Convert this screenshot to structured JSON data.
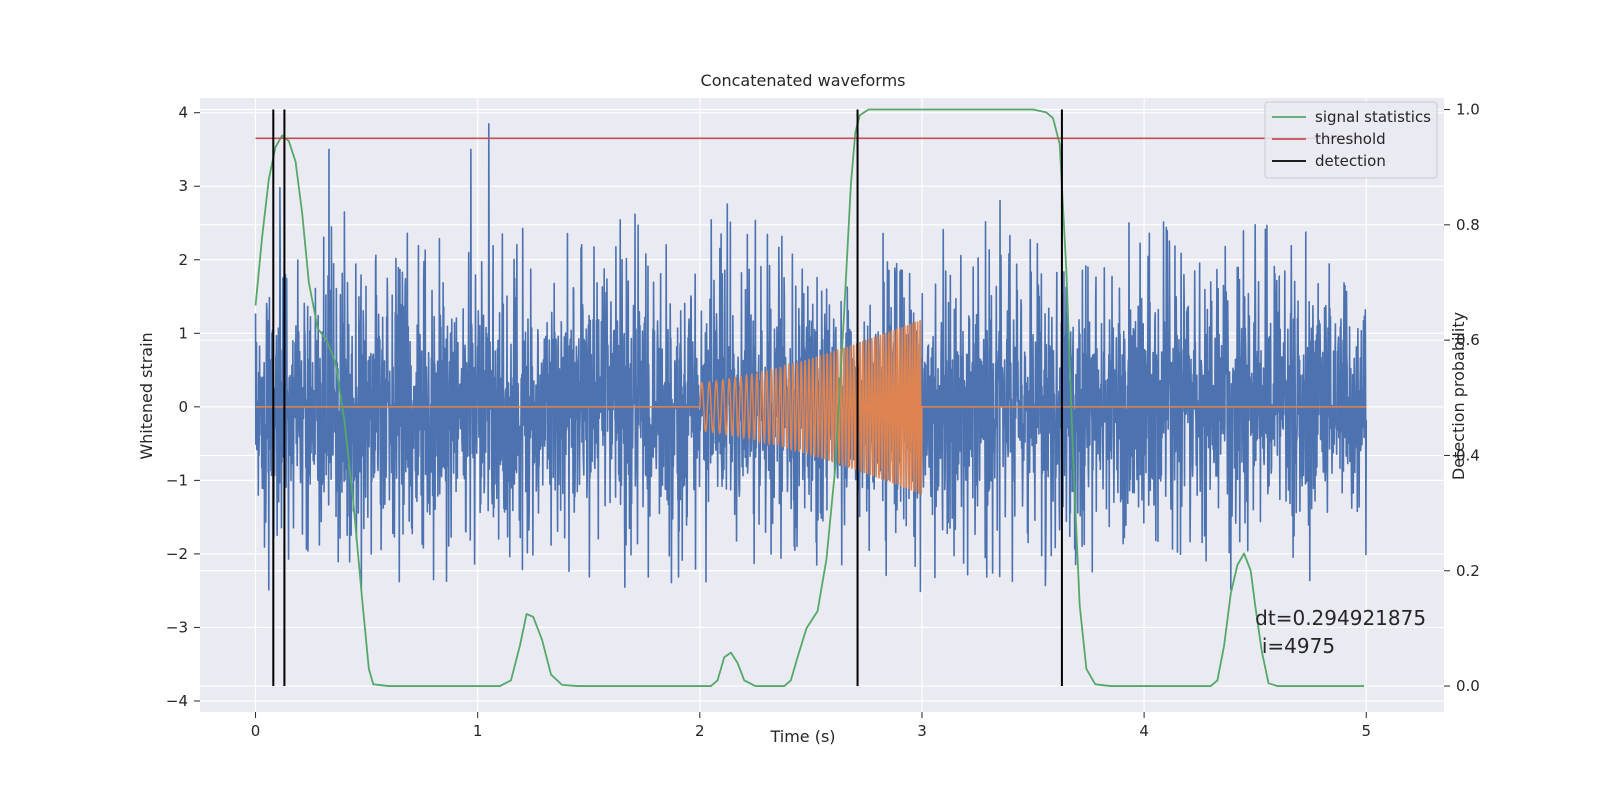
{
  "chart_data": {
    "type": "line",
    "title": "Concatenated waveforms",
    "xlabel": "Time (s)",
    "ylabel_left": "Whitened strain",
    "ylabel_right": "Detection probability",
    "xlim": [
      -0.25,
      5.35
    ],
    "ylim_left": [
      -4.15,
      4.2
    ],
    "ylim_right": [
      -0.045,
      1.02
    ],
    "x_ticks": [
      0,
      1,
      2,
      3,
      4,
      5
    ],
    "x_tick_labels": [
      "0",
      "1",
      "2",
      "3",
      "4",
      "5"
    ],
    "y_left_ticks": [
      -4,
      -3,
      -2,
      -1,
      0,
      1,
      2,
      3,
      4
    ],
    "y_left_tick_labels": [
      "−4",
      "−3",
      "−2",
      "−1",
      "0",
      "1",
      "2",
      "3",
      "4"
    ],
    "y_right_ticks": [
      0.0,
      0.2,
      0.4,
      0.6,
      0.8,
      1.0
    ],
    "y_right_tick_labels": [
      "0.0",
      "0.2",
      "0.4",
      "0.6",
      "0.8",
      "1.0"
    ],
    "grid": true,
    "legend_position": "top-right",
    "series": [
      {
        "name": "",
        "axis": "left",
        "kind": "noise",
        "color": "#4c72b0",
        "x_range": [
          0,
          5
        ],
        "typical_amplitude": [
          -1.1,
          1.25
        ],
        "peak_max": 3.85,
        "peak_min": -3.1,
        "prominent_peaks": [
          {
            "x": 0.33,
            "y": 3.5
          },
          {
            "x": 0.97,
            "y": 3.5
          },
          {
            "x": 1.05,
            "y": 3.85
          },
          {
            "x": 0.11,
            "y": 2.98
          },
          {
            "x": 0.4,
            "y": 2.65
          }
        ]
      },
      {
        "name": "",
        "axis": "left",
        "kind": "chirp",
        "color": "#dd8452",
        "x_range": [
          0,
          5
        ],
        "active_range": [
          2.0,
          3.0
        ],
        "amplitude_start": 0.33,
        "amplitude_end": 1.2,
        "flat_value": 0
      },
      {
        "name": "signal statistics",
        "axis": "right",
        "color": "#55a868",
        "points": [
          [
            0.0,
            0.66
          ],
          [
            0.03,
            0.78
          ],
          [
            0.06,
            0.88
          ],
          [
            0.09,
            0.935
          ],
          [
            0.12,
            0.955
          ],
          [
            0.15,
            0.945
          ],
          [
            0.18,
            0.91
          ],
          [
            0.21,
            0.82
          ],
          [
            0.24,
            0.7
          ],
          [
            0.28,
            0.62
          ],
          [
            0.32,
            0.6
          ],
          [
            0.36,
            0.56
          ],
          [
            0.4,
            0.46
          ],
          [
            0.44,
            0.32
          ],
          [
            0.48,
            0.15
          ],
          [
            0.51,
            0.03
          ],
          [
            0.53,
            0.003
          ],
          [
            0.6,
            0.0
          ],
          [
            1.1,
            0.0
          ],
          [
            1.15,
            0.01
          ],
          [
            1.19,
            0.07
          ],
          [
            1.22,
            0.125
          ],
          [
            1.25,
            0.12
          ],
          [
            1.29,
            0.08
          ],
          [
            1.33,
            0.02
          ],
          [
            1.38,
            0.002
          ],
          [
            1.45,
            0.0
          ],
          [
            2.05,
            0.0
          ],
          [
            2.08,
            0.01
          ],
          [
            2.11,
            0.05
          ],
          [
            2.14,
            0.058
          ],
          [
            2.17,
            0.04
          ],
          [
            2.2,
            0.01
          ],
          [
            2.25,
            0.0
          ],
          [
            2.38,
            0.0
          ],
          [
            2.41,
            0.01
          ],
          [
            2.44,
            0.05
          ],
          [
            2.48,
            0.1
          ],
          [
            2.53,
            0.13
          ],
          [
            2.57,
            0.22
          ],
          [
            2.61,
            0.38
          ],
          [
            2.65,
            0.65
          ],
          [
            2.68,
            0.87
          ],
          [
            2.7,
            0.96
          ],
          [
            2.72,
            0.99
          ],
          [
            2.76,
            1.0
          ],
          [
            3.5,
            1.0
          ],
          [
            3.56,
            0.995
          ],
          [
            3.59,
            0.985
          ],
          [
            3.62,
            0.94
          ],
          [
            3.65,
            0.72
          ],
          [
            3.68,
            0.4
          ],
          [
            3.71,
            0.14
          ],
          [
            3.74,
            0.03
          ],
          [
            3.78,
            0.003
          ],
          [
            3.85,
            0.0
          ],
          [
            4.3,
            0.0
          ],
          [
            4.33,
            0.01
          ],
          [
            4.36,
            0.07
          ],
          [
            4.39,
            0.16
          ],
          [
            4.42,
            0.21
          ],
          [
            4.45,
            0.23
          ],
          [
            4.48,
            0.2
          ],
          [
            4.5,
            0.14
          ],
          [
            4.53,
            0.06
          ],
          [
            4.56,
            0.005
          ],
          [
            4.6,
            0.0
          ],
          [
            4.99,
            0.0
          ]
        ]
      },
      {
        "name": "threshold",
        "axis": "right",
        "color": "#c44e52",
        "y": 0.95,
        "x_range": [
          0,
          5
        ]
      },
      {
        "name": "detection",
        "axis": "right",
        "color": "#000000",
        "x_positions": [
          0.08,
          0.13,
          2.71,
          3.63
        ],
        "y_range": [
          0,
          1
        ]
      }
    ],
    "annotations": [
      {
        "text": "dt=0.294921875",
        "x": 4.5,
        "y": -2.97
      },
      {
        "text": "i=4975",
        "x": 4.53,
        "y": -3.35
      }
    ]
  }
}
